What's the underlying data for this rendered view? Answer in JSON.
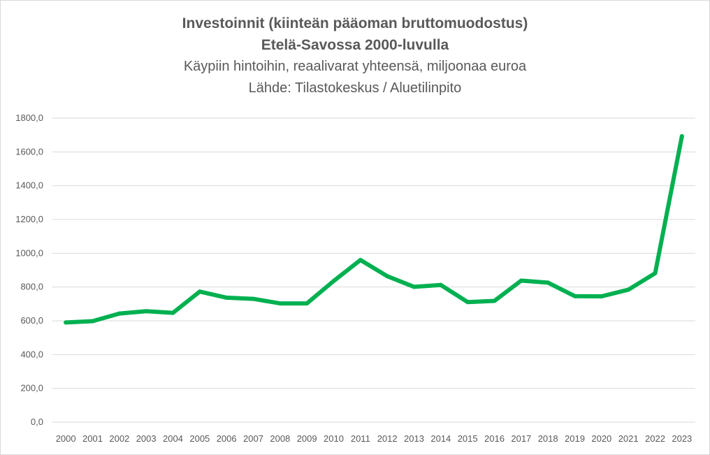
{
  "chart_data": {
    "type": "line",
    "title_lines": [
      "Investoinnit (kiinteän pääoman bruttomuodostus)",
      "Etelä-Savossa 2000-luvulla"
    ],
    "subtitle_lines": [
      "Käypiin hintoihin, reaalivarat yhteensä, miljoonaa euroa",
      "Lähde: Tilastokeskus / Aluetilinpito"
    ],
    "xlabel": "",
    "ylabel": "",
    "ylim": [
      0,
      1800
    ],
    "y_ticks": [
      "0,0",
      "200,0",
      "400,0",
      "600,0",
      "800,0",
      "1000,0",
      "1200,0",
      "1400,0",
      "1600,0",
      "1800,0"
    ],
    "grid": true,
    "legend": "none",
    "line_color": "#00b050",
    "grid_color": "#d9d9d9",
    "categories": [
      "2000",
      "2001",
      "2002",
      "2003",
      "2004",
      "2005",
      "2006",
      "2007",
      "2008",
      "2009",
      "2010",
      "2011",
      "2012",
      "2013",
      "2014",
      "2015",
      "2016",
      "2017",
      "2018",
      "2019",
      "2020",
      "2021",
      "2022",
      "2023"
    ],
    "series": [
      {
        "values": [
          590,
          598,
          643,
          657,
          647,
          773,
          737,
          730,
          703,
          703,
          836,
          960,
          864,
          801,
          812,
          711,
          718,
          838,
          826,
          746,
          745,
          784,
          882,
          1693
        ]
      }
    ]
  }
}
